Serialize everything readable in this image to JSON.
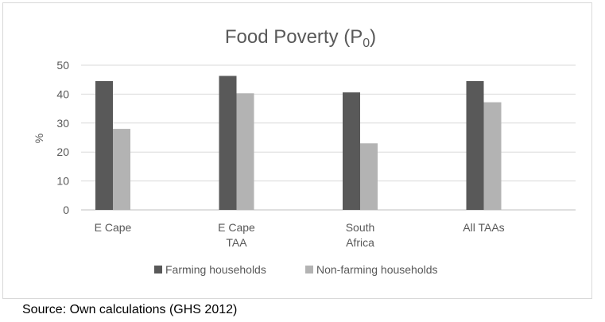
{
  "chart_data": {
    "type": "bar",
    "title": "Food Poverty (P",
    "title_subscript": "0",
    "title_suffix": ")",
    "ylabel": "%",
    "xlabel": "",
    "ylim": [
      0,
      50
    ],
    "yticks": [
      0,
      10,
      20,
      30,
      40,
      50
    ],
    "grid": true,
    "legend_position": "bottom",
    "categories": [
      [
        "E Cape"
      ],
      [
        "E Cape",
        "TAA"
      ],
      [
        "South",
        "Africa"
      ],
      [
        "All TAAs"
      ]
    ],
    "series": [
      {
        "name": "Farming households",
        "color": "#595959",
        "values": [
          44.5,
          46.3,
          40.6,
          44.5
        ]
      },
      {
        "name": "Non-farming households",
        "color": "#b3b3b3",
        "values": [
          28.0,
          40.3,
          23.0,
          37.2
        ]
      }
    ]
  },
  "source_note": "Source: Own calculations (GHS 2012)"
}
